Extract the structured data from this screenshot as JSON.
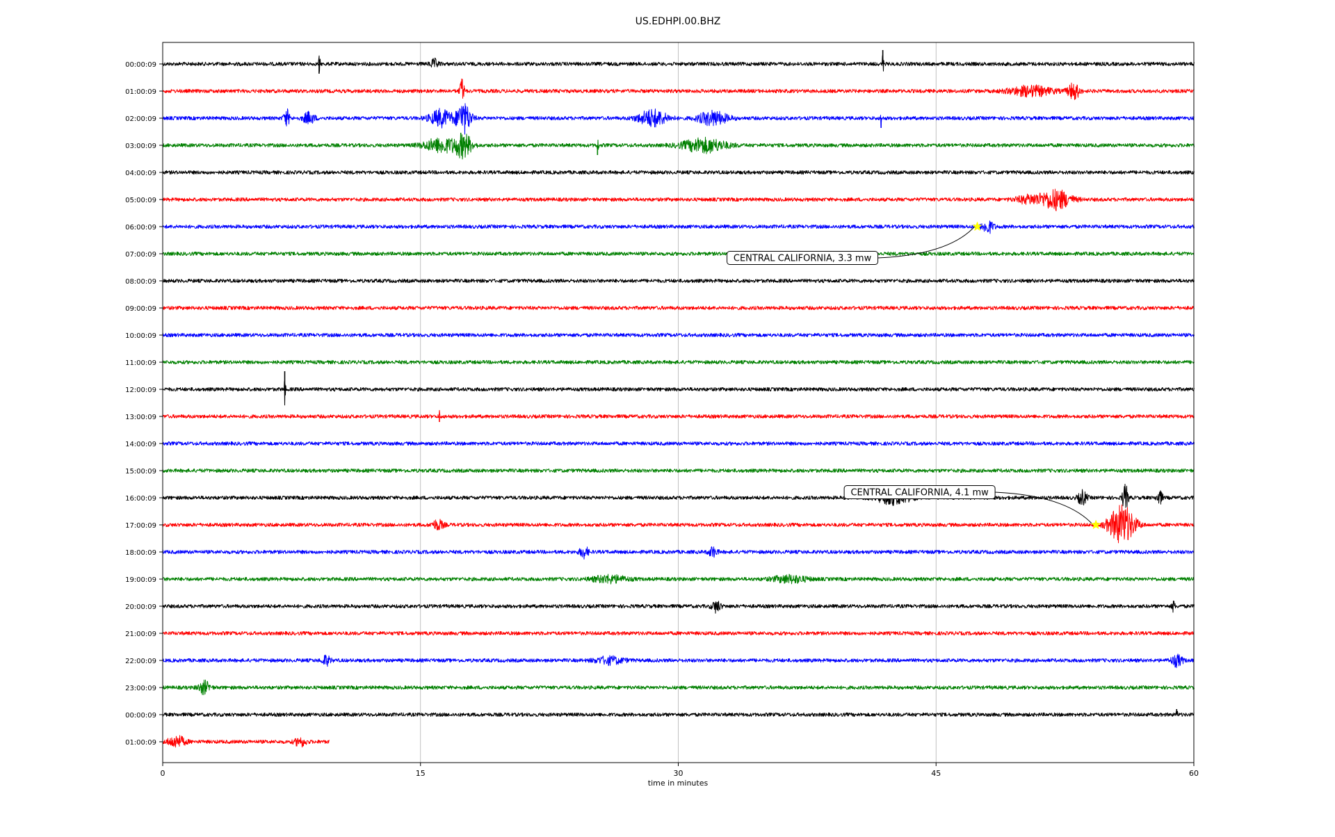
{
  "chart_data": {
    "type": "line",
    "title": "US.EDHPI.00.BHZ",
    "xlabel": "time in minutes",
    "ylabel": "",
    "xlim": [
      0,
      60
    ],
    "x_ticks": [
      0,
      15,
      30,
      45,
      60
    ],
    "grid": "vertical lines at x ticks",
    "row_labels": [
      "00:00:09",
      "01:00:09",
      "02:00:09",
      "03:00:09",
      "04:00:09",
      "05:00:09",
      "06:00:09",
      "07:00:09",
      "08:00:09",
      "09:00:09",
      "10:00:09",
      "11:00:09",
      "12:00:09",
      "13:00:09",
      "14:00:09",
      "15:00:09",
      "16:00:09",
      "17:00:09",
      "18:00:09",
      "19:00:09",
      "20:00:09",
      "21:00:09",
      "22:00:09",
      "23:00:09",
      "00:00:09",
      "01:00:09"
    ],
    "trace_colors": [
      "#000000",
      "#ff0000",
      "#0000ff",
      "#008000"
    ],
    "last_row_end_minute": 9.7,
    "events": [
      {
        "row": 0,
        "minute": 41.9,
        "amp": 20,
        "width": 0.05,
        "dir": 1
      },
      {
        "row": 0,
        "minute": 9.1,
        "amp": 14,
        "width": 0.05,
        "dir": -1
      },
      {
        "row": 0,
        "minute": 15.8,
        "amp": 6,
        "width": 0.3
      },
      {
        "row": 1,
        "minute": 17.4,
        "amp": 18,
        "width": 0.15
      },
      {
        "row": 1,
        "minute": 50.5,
        "amp": 7,
        "width": 1.5
      },
      {
        "row": 1,
        "minute": 53.0,
        "amp": 12,
        "width": 0.4
      },
      {
        "row": 2,
        "minute": 7.2,
        "amp": 12,
        "width": 0.2
      },
      {
        "row": 2,
        "minute": 8.5,
        "amp": 8,
        "width": 0.4
      },
      {
        "row": 2,
        "minute": 16.2,
        "amp": 12,
        "width": 0.8
      },
      {
        "row": 2,
        "minute": 17.5,
        "amp": 22,
        "width": 0.5
      },
      {
        "row": 2,
        "minute": 28.5,
        "amp": 12,
        "width": 1.0
      },
      {
        "row": 2,
        "minute": 32.0,
        "amp": 10,
        "width": 1.0
      },
      {
        "row": 2,
        "minute": 41.8,
        "amp": 14,
        "width": 0.05,
        "dir": -1
      },
      {
        "row": 3,
        "minute": 16.2,
        "amp": 10,
        "width": 1.2
      },
      {
        "row": 3,
        "minute": 17.5,
        "amp": 16,
        "width": 0.6
      },
      {
        "row": 3,
        "minute": 25.3,
        "amp": 14,
        "width": 0.05,
        "dir": -1
      },
      {
        "row": 3,
        "minute": 31.5,
        "amp": 10,
        "width": 1.5
      },
      {
        "row": 5,
        "minute": 50.5,
        "amp": 6,
        "width": 1.0
      },
      {
        "row": 5,
        "minute": 52.0,
        "amp": 14,
        "width": 1.0
      },
      {
        "row": 6,
        "minute": 48.0,
        "amp": 9,
        "width": 0.4
      },
      {
        "row": 12,
        "minute": 7.1,
        "amp": 26,
        "width": 0.05,
        "dir": 1
      },
      {
        "row": 13,
        "minute": 16.1,
        "amp": 8,
        "width": 0.05,
        "dir": -1
      },
      {
        "row": 16,
        "minute": 42.5,
        "amp": 9,
        "width": 1.2
      },
      {
        "row": 16,
        "minute": 53.5,
        "amp": 10,
        "width": 0.3
      },
      {
        "row": 16,
        "minute": 56.0,
        "amp": 18,
        "width": 0.2
      },
      {
        "row": 16,
        "minute": 58.0,
        "amp": 10,
        "width": 0.2
      },
      {
        "row": 17,
        "minute": 16.0,
        "amp": 7,
        "width": 0.4
      },
      {
        "row": 17,
        "minute": 55.8,
        "amp": 28,
        "width": 0.9
      },
      {
        "row": 18,
        "minute": 24.5,
        "amp": 8,
        "width": 0.3
      },
      {
        "row": 18,
        "minute": 32.0,
        "amp": 7,
        "width": 0.3
      },
      {
        "row": 19,
        "minute": 26.0,
        "amp": 5,
        "width": 1.2
      },
      {
        "row": 19,
        "minute": 36.5,
        "amp": 5,
        "width": 1.2
      },
      {
        "row": 20,
        "minute": 32.2,
        "amp": 8,
        "width": 0.3
      },
      {
        "row": 20,
        "minute": 58.8,
        "amp": 8,
        "width": 0.1
      },
      {
        "row": 22,
        "minute": 9.5,
        "amp": 7,
        "width": 0.3
      },
      {
        "row": 22,
        "minute": 26.0,
        "amp": 5,
        "width": 1.0
      },
      {
        "row": 22,
        "minute": 59.0,
        "amp": 8,
        "width": 0.4
      },
      {
        "row": 23,
        "minute": 2.4,
        "amp": 9,
        "width": 0.4
      },
      {
        "row": 24,
        "minute": 59.0,
        "amp": 8,
        "width": 0.05,
        "dir": 1
      },
      {
        "row": 25,
        "minute": 0.8,
        "amp": 8,
        "width": 0.6
      },
      {
        "row": 25,
        "minute": 8.0,
        "amp": 6,
        "width": 0.4
      }
    ],
    "annotations": [
      {
        "text": "CENTRAL CALIFORNIA, 3.3 mw",
        "row": 6,
        "minute": 47.4,
        "star_color": "#ffff00"
      },
      {
        "text": "CENTRAL CALIFORNIA, 4.1 mw",
        "row": 17,
        "minute": 54.3,
        "star_color": "#ffff00"
      }
    ]
  }
}
